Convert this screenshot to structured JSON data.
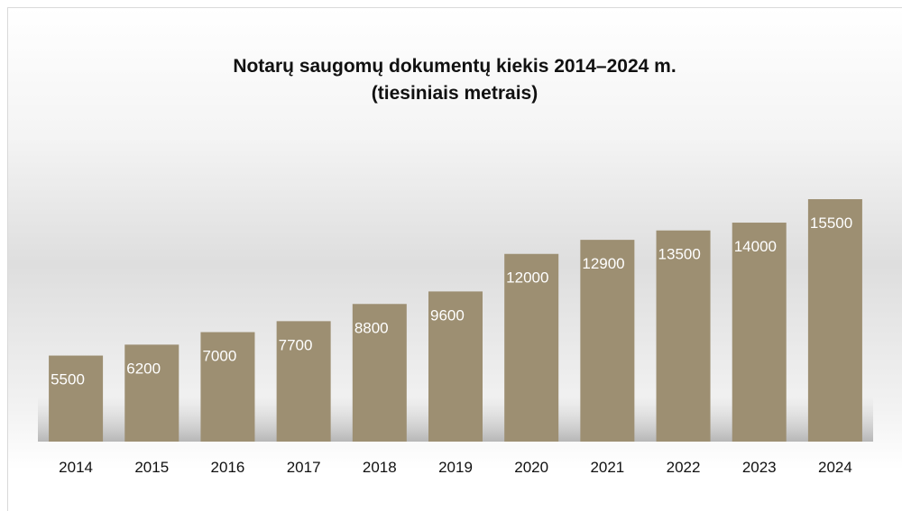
{
  "chart_data": {
    "type": "bar",
    "title": "Notarų saugomų dokumentų kiekis 2014–2024 m.",
    "subtitle": "(tiesiniais metrais)",
    "categories": [
      "2014",
      "2015",
      "2016",
      "2017",
      "2018",
      "2019",
      "2020",
      "2021",
      "2022",
      "2023",
      "2024"
    ],
    "values": [
      5500,
      6200,
      7000,
      7700,
      8800,
      9600,
      12000,
      12900,
      13500,
      14000,
      15500
    ],
    "color": "#9d8f72"
  }
}
